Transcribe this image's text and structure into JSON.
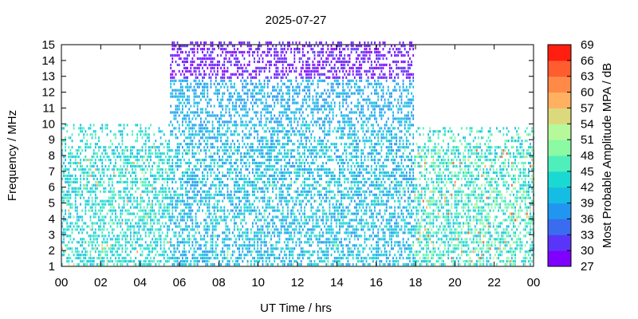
{
  "chart_data": {
    "type": "heatmap",
    "title": "2025-07-27",
    "xlabel": "UT Time / hrs",
    "ylabel": "Frequency / MHz",
    "colorbar_label": "Most Probable Amplitude MPA / dB",
    "xlim": [
      0,
      24
    ],
    "ylim": [
      1,
      15
    ],
    "x_ticks": [
      "00",
      "02",
      "04",
      "06",
      "08",
      "10",
      "12",
      "14",
      "16",
      "18",
      "20",
      "22",
      "00"
    ],
    "y_ticks": [
      "1",
      "2",
      "3",
      "4",
      "5",
      "6",
      "7",
      "8",
      "9",
      "10",
      "11",
      "12",
      "13",
      "14",
      "15"
    ],
    "colorbar_range": [
      27,
      69
    ],
    "colorbar_ticks": [
      "27",
      "30",
      "33",
      "36",
      "39",
      "42",
      "45",
      "48",
      "51",
      "54",
      "57",
      "60",
      "63",
      "66",
      "69"
    ],
    "colorbar_colors": [
      "#7f00ff",
      "#5a35f9",
      "#3a6cf0",
      "#2196f0",
      "#15bde5",
      "#1ad9d2",
      "#4fefbc",
      "#8cf9a3",
      "#b6f99b",
      "#dcd97c",
      "#ffb060",
      "#ff8a48",
      "#ff5c30",
      "#ff1e10"
    ],
    "grid": false,
    "legend": "colorbar-right",
    "regions": [
      {
        "t_start": 0,
        "t_end": 5.5,
        "f_max": 9.8,
        "mpa_typical": [
          39,
          48
        ],
        "mpa_peak": 60
      },
      {
        "t_start": 5.5,
        "t_end": 17.9,
        "f_max": 15,
        "mpa_typical": [
          36,
          45
        ],
        "mpa_peak": 51,
        "high_band_mpa": [
          27,
          33
        ]
      },
      {
        "t_start": 17.9,
        "t_end": 24,
        "f_max": 9.7,
        "mpa_typical": [
          39,
          51
        ],
        "mpa_peak": 66
      }
    ]
  }
}
